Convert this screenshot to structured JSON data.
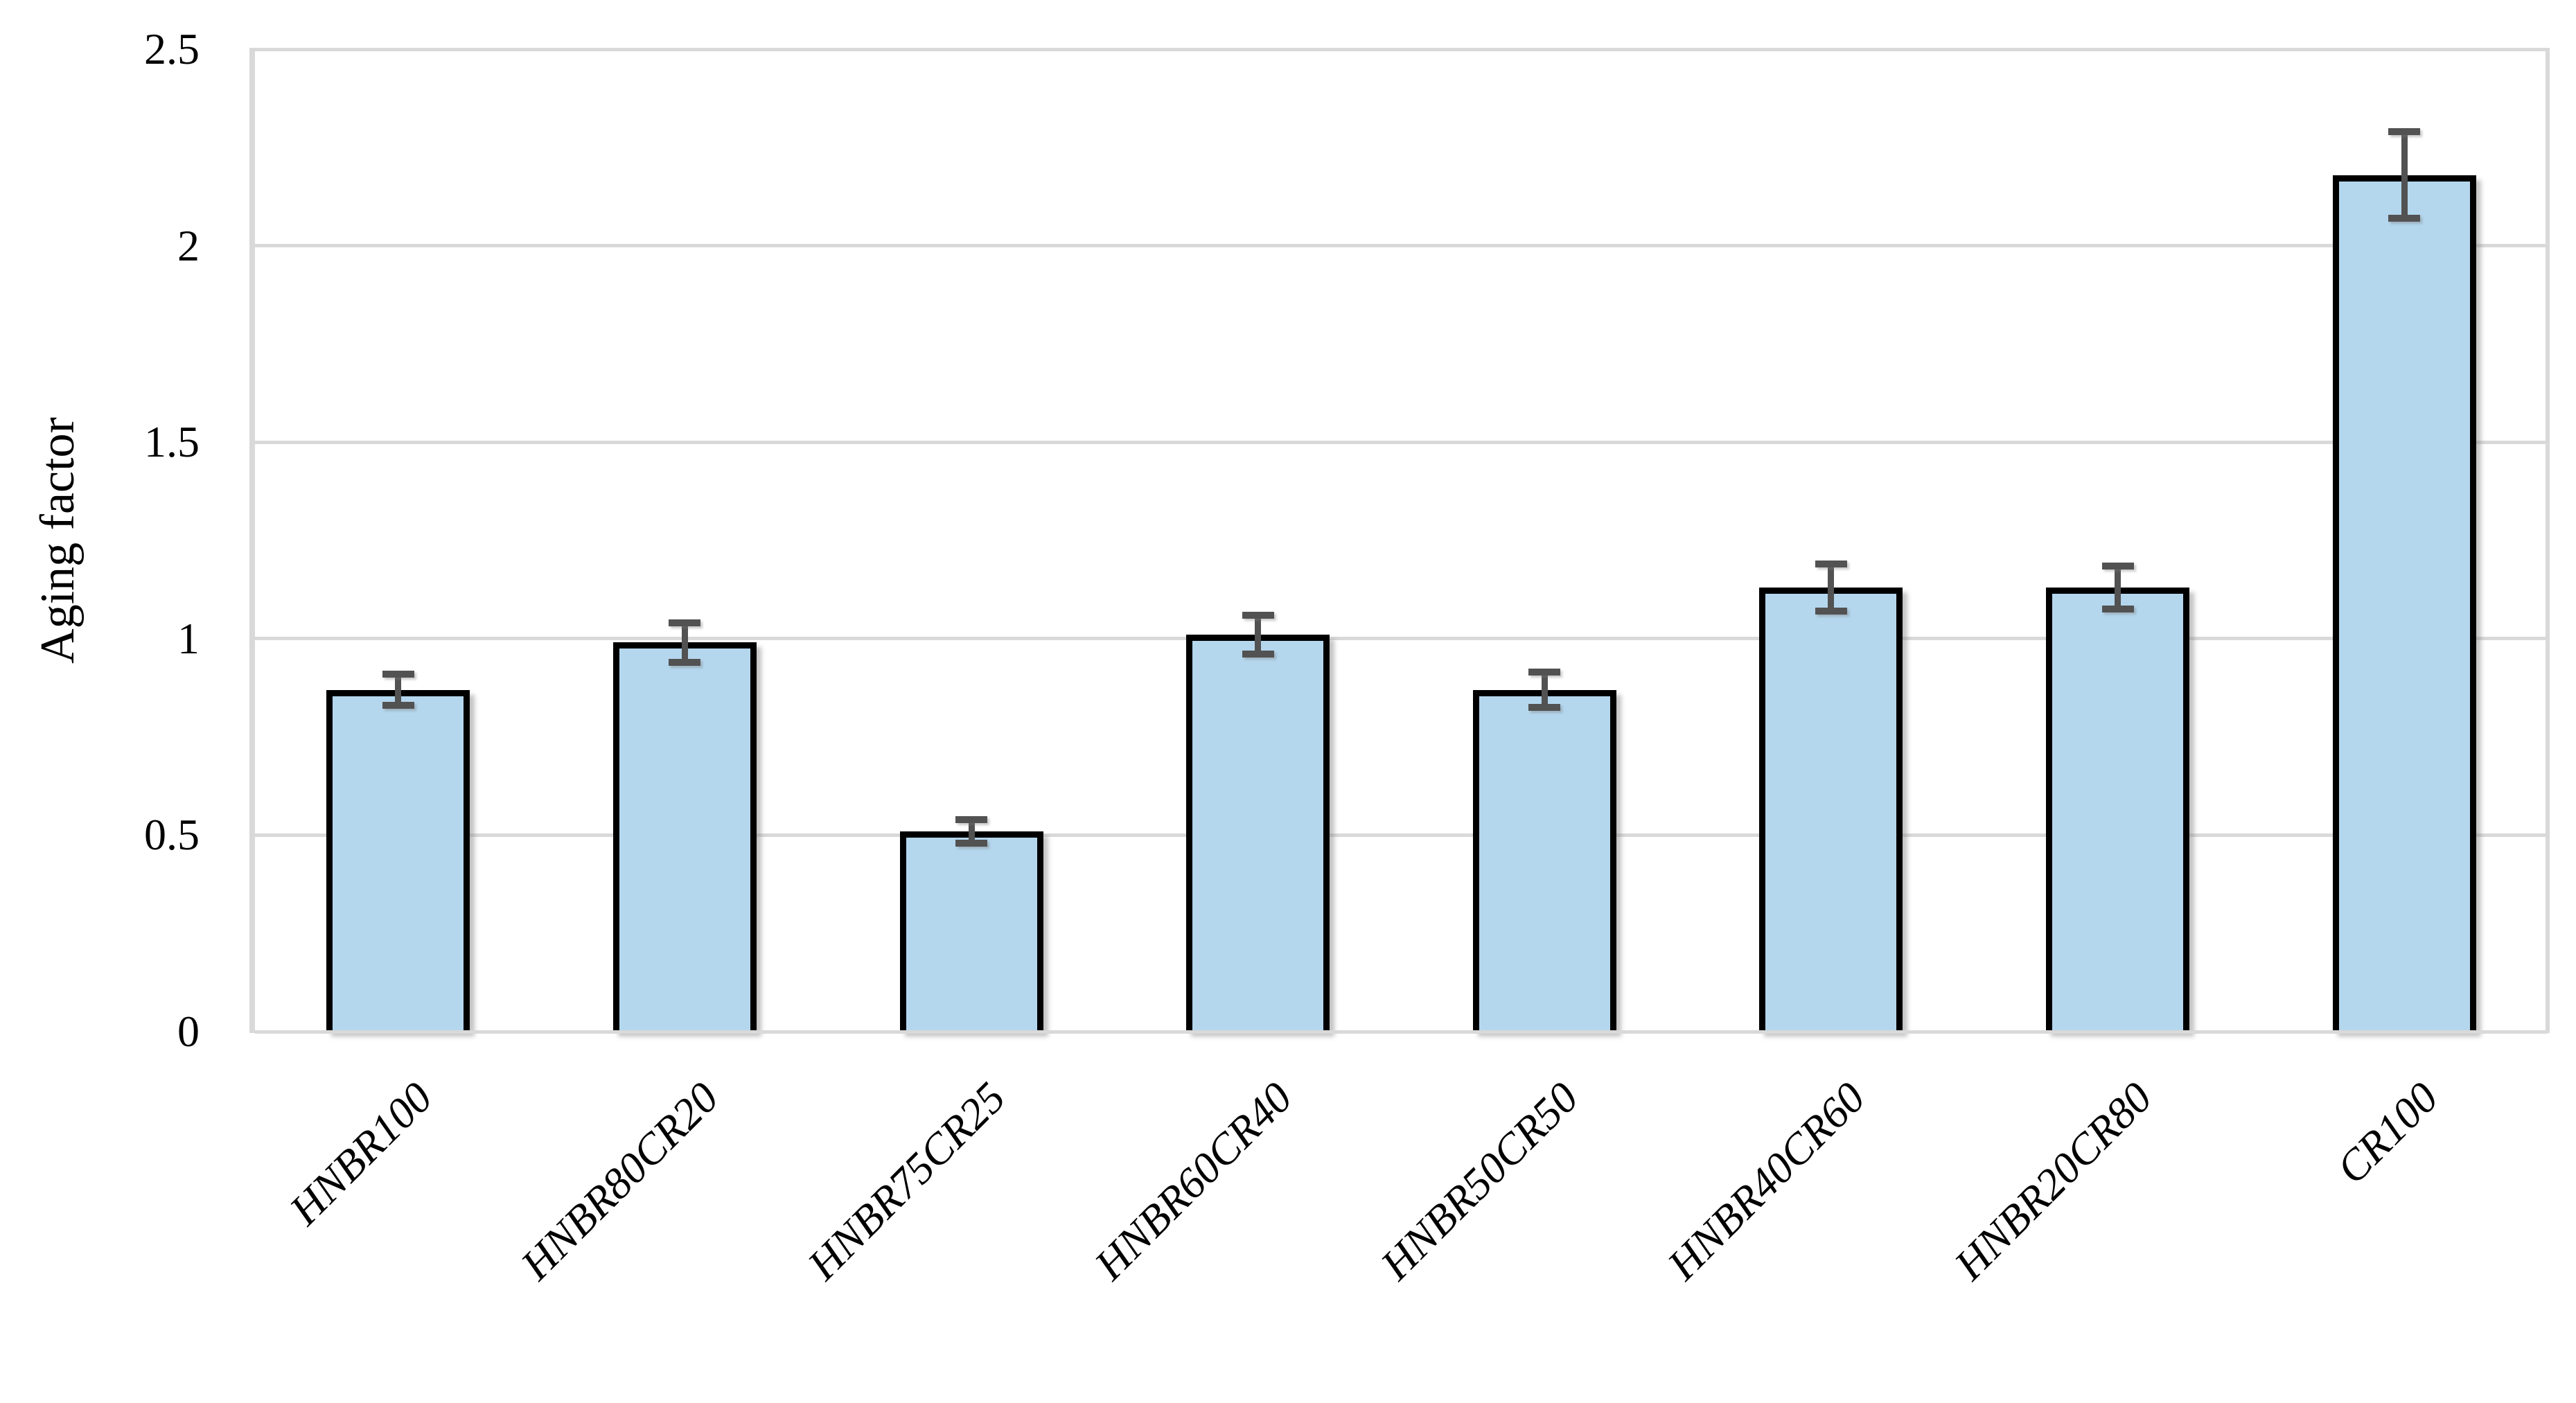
{
  "chart_data": {
    "type": "bar",
    "title": "",
    "ylabel": "Aging factor",
    "xlabel": "",
    "categories": [
      "HNBR100",
      "HNBR80CR20",
      "HNBR75CR25",
      "HNBR60CR40",
      "HNBR50CR50",
      "HNBR40CR60",
      "HNBR20CR80",
      "CR100"
    ],
    "values": [
      0.87,
      0.99,
      0.51,
      1.01,
      0.87,
      1.13,
      1.13,
      2.18
    ],
    "error_bars": [
      0.04,
      0.05,
      0.03,
      0.05,
      0.045,
      0.06,
      0.055,
      0.11
    ],
    "ylim": [
      0,
      2.5
    ],
    "yticks": [
      0,
      0.5,
      1,
      1.5,
      2,
      2.5
    ],
    "ytick_labels": [
      "0",
      "0.5",
      "1",
      "1.5",
      "2",
      "2.5"
    ],
    "grid": true,
    "legend": null,
    "bar_fill_color": "#b4d7ee",
    "bar_border_color": "#000000",
    "error_bar_color": "#525252",
    "gridline_color": "#d9d9d9",
    "background_color": "#ffffff"
  }
}
